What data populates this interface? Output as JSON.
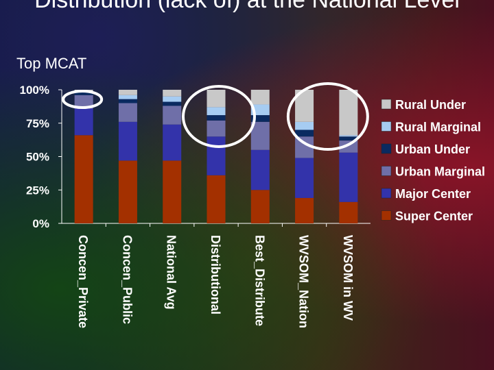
{
  "slide": {
    "title": "Distribution (lack of) at the National Level",
    "subtitle": "Top MCAT"
  },
  "chart_data": {
    "type": "bar",
    "stacked": true,
    "categories": [
      "Concen_Private",
      "Concen_Public",
      "National Avg",
      "Distributional",
      "Best_Distribute",
      "WVSOM_Nation",
      "WVSOM in WV"
    ],
    "y_ticks": [
      "0%",
      "25%",
      "50%",
      "75%",
      "100%"
    ],
    "ylim": [
      0,
      100
    ],
    "legend_position": "right",
    "series": [
      {
        "name": "Super Center",
        "color": "#a33000",
        "values": [
          66,
          47,
          47,
          36,
          25,
          19,
          16
        ]
      },
      {
        "name": "Major Center",
        "color": "#3333aa",
        "values": [
          20,
          29,
          27,
          29,
          30,
          30,
          37
        ]
      },
      {
        "name": "Urban Marginal",
        "color": "#6f6fa8",
        "values": [
          10,
          14,
          14,
          12,
          21,
          16,
          9
        ]
      },
      {
        "name": "Urban Under",
        "color": "#0a2a60",
        "values": [
          2,
          3,
          3,
          4,
          5,
          5,
          3
        ]
      },
      {
        "name": "Rural Marginal",
        "color": "#a6ccf2",
        "values": [
          1,
          3,
          4,
          6,
          8,
          6,
          1
        ]
      },
      {
        "name": "Rural Under",
        "color": "#c8c8c8",
        "values": [
          1,
          4,
          5,
          13,
          11,
          24,
          34
        ]
      }
    ],
    "highlights": [
      {
        "color": "#ffffff"
      },
      {
        "color": "#ffffff"
      },
      {
        "color": "#ffffff"
      }
    ]
  }
}
